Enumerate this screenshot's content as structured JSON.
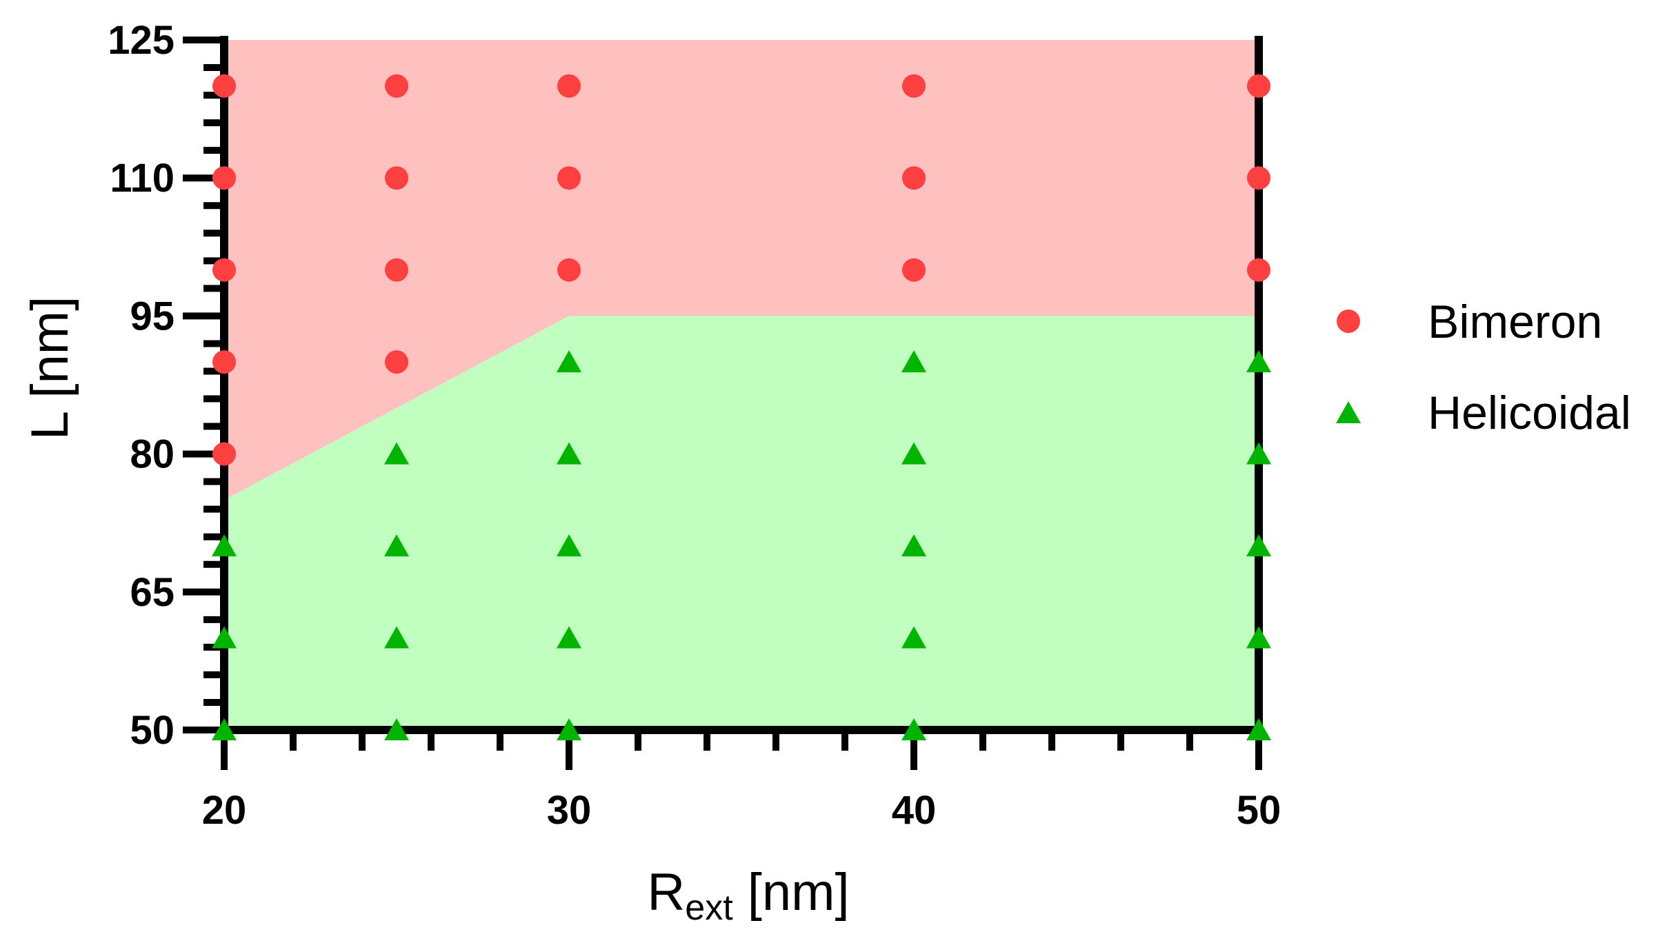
{
  "chart_data": {
    "type": "scatter",
    "title": "",
    "xlabel": {
      "main": "R",
      "sub": "ext",
      "unit": " [nm]"
    },
    "ylabel": "L [nm]",
    "xlim": [
      20,
      50
    ],
    "ylim": [
      50,
      125
    ],
    "x_ticks": [
      20,
      30,
      40,
      50
    ],
    "x_tick_labels": [
      "20",
      "30",
      "40",
      "50"
    ],
    "x_minor_step": 2,
    "y_ticks": [
      50,
      65,
      80,
      95,
      110,
      125
    ],
    "y_tick_labels": [
      "50",
      "65",
      "80",
      "95",
      "110",
      "125"
    ],
    "y_minor_step": 3,
    "grid": false,
    "legend_position": "right",
    "regions": [
      {
        "name": "bimeron-region",
        "color": "#ffc0c0",
        "points": [
          [
            20,
            125
          ],
          [
            50,
            125
          ],
          [
            50,
            95
          ],
          [
            30,
            95
          ],
          [
            20,
            75
          ]
        ]
      },
      {
        "name": "helicoidal-region",
        "color": "#c0ffc0",
        "points": [
          [
            20,
            75
          ],
          [
            30,
            95
          ],
          [
            50,
            95
          ],
          [
            50,
            50
          ],
          [
            20,
            50
          ]
        ]
      }
    ],
    "series": [
      {
        "name": "Bimeron",
        "marker": "circle",
        "color": "#ff4040",
        "points": [
          [
            20,
            80
          ],
          [
            20,
            90
          ],
          [
            20,
            100
          ],
          [
            20,
            110
          ],
          [
            20,
            120
          ],
          [
            25,
            90
          ],
          [
            25,
            100
          ],
          [
            25,
            110
          ],
          [
            25,
            120
          ],
          [
            30,
            100
          ],
          [
            30,
            110
          ],
          [
            30,
            120
          ],
          [
            40,
            100
          ],
          [
            40,
            110
          ],
          [
            40,
            120
          ],
          [
            50,
            100
          ],
          [
            50,
            110
          ],
          [
            50,
            120
          ]
        ]
      },
      {
        "name": "Helicoidal",
        "marker": "triangle",
        "color": "#00b400",
        "points": [
          [
            20,
            50
          ],
          [
            20,
            60
          ],
          [
            20,
            70
          ],
          [
            25,
            50
          ],
          [
            25,
            60
          ],
          [
            25,
            70
          ],
          [
            25,
            80
          ],
          [
            30,
            50
          ],
          [
            30,
            60
          ],
          [
            30,
            70
          ],
          [
            30,
            80
          ],
          [
            30,
            90
          ],
          [
            40,
            50
          ],
          [
            40,
            60
          ],
          [
            40,
            70
          ],
          [
            40,
            80
          ],
          [
            40,
            90
          ],
          [
            50,
            50
          ],
          [
            50,
            60
          ],
          [
            50,
            70
          ],
          [
            50,
            80
          ],
          [
            50,
            90
          ]
        ]
      }
    ]
  }
}
